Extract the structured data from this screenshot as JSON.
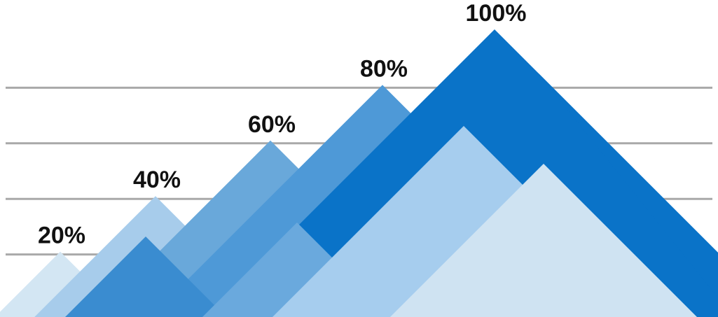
{
  "chart_data": {
    "type": "area",
    "style": "mountain peaks",
    "categories": [
      "20%",
      "40%",
      "60%",
      "80%",
      "100%"
    ],
    "values": [
      20,
      40,
      60,
      80,
      100
    ],
    "data_labels": [
      "20%",
      "40%",
      "60%",
      "80%",
      "100%"
    ],
    "ylim": [
      0,
      100
    ],
    "grid": true,
    "title": "",
    "xlabel": "",
    "ylabel": ""
  },
  "colors": {
    "background": "#ffffff",
    "grid": "#a9a9a9",
    "label_text": "#111111",
    "peak_20": "#d3e6f3",
    "peak_40": "#a7cceb",
    "peak_60": "#69a8da",
    "peak_80": "#4e99d7",
    "peak_100": "#0a73c8",
    "inner_dark": "#3a8cd0",
    "inner_mid": "#6aa9dd",
    "inner_light": "#a6cdee",
    "inner_pale": "#cfe3f2"
  }
}
